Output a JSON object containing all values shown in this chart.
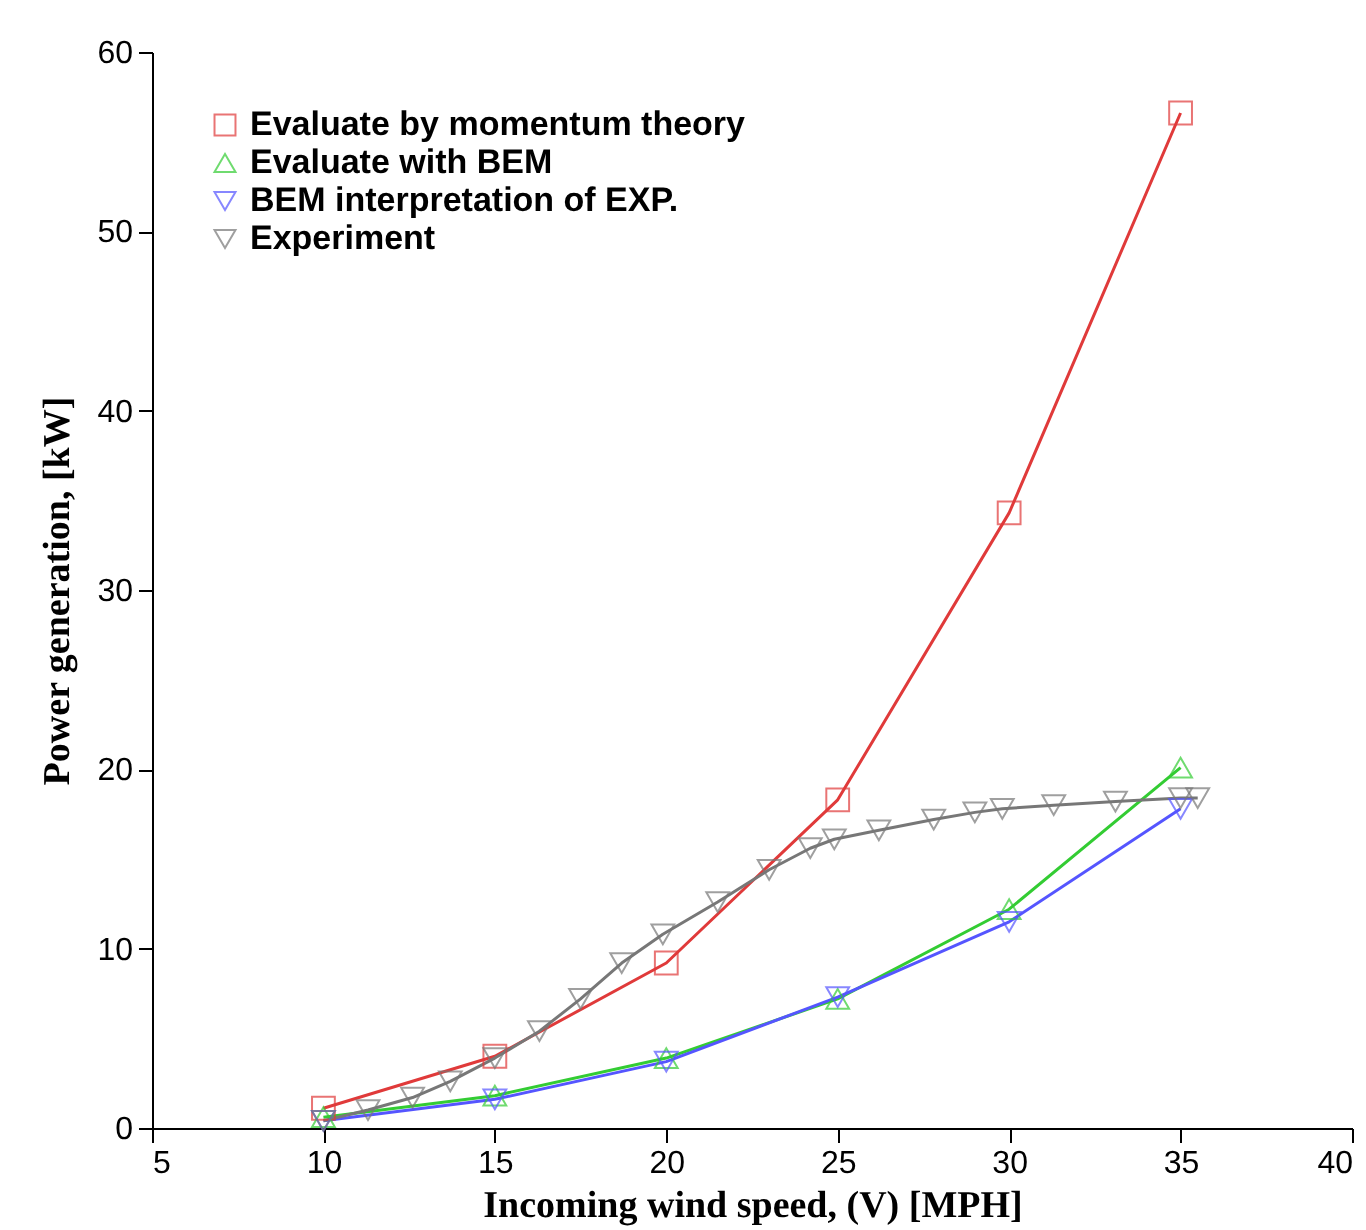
{
  "chart_data": {
    "type": "line",
    "xlabel": "Incoming wind speed, (V) [MPH]",
    "ylabel": "Power generation, [kW]",
    "xlim": [
      5,
      40
    ],
    "xticks": [
      5,
      10,
      15,
      20,
      25,
      30,
      35,
      40
    ],
    "ylim": [
      0,
      60
    ],
    "yticks": [
      0,
      10,
      20,
      30,
      40,
      50,
      60
    ],
    "legend": "top left",
    "grid": false,
    "line_style": "solid",
    "series": [
      {
        "name": "Evaluate by momentum theory",
        "color": "#e03a3a",
        "marker": "square",
        "x": [
          10,
          15,
          20,
          25,
          30,
          35
        ],
        "values": [
          1.1,
          4.0,
          9.2,
          18.3,
          34.3,
          56.6
        ]
      },
      {
        "name": "Evaluate with BEM",
        "color": "#33cc33",
        "marker": "triangle",
        "x": [
          10,
          15,
          20,
          25,
          30,
          35
        ],
        "values": [
          0.6,
          1.8,
          3.9,
          7.2,
          12.2,
          20.1
        ]
      },
      {
        "name": "BEM interpretation of EXP.",
        "color": "#5555ff",
        "marker": "triangle-down",
        "x": [
          10,
          15,
          20,
          25,
          30,
          35
        ],
        "values": [
          0.4,
          1.6,
          3.7,
          7.3,
          11.5,
          17.8
        ]
      },
      {
        "name": "Experiment",
        "color": "#777777",
        "marker": "triangle-down",
        "x": [
          10,
          11.3,
          12.6,
          13.7,
          15.0,
          16.3,
          17.5,
          18.7,
          19.9,
          21.5,
          23.0,
          24.2,
          24.9,
          26.2,
          27.8,
          29.0,
          29.8,
          31.3,
          33.1,
          35.0,
          35.5
        ],
        "values": [
          0.4,
          1.0,
          1.7,
          2.6,
          3.9,
          5.4,
          7.2,
          9.2,
          10.8,
          12.6,
          14.4,
          15.6,
          16.1,
          16.6,
          17.2,
          17.6,
          17.8,
          18.0,
          18.2,
          18.4,
          18.4
        ]
      }
    ]
  }
}
